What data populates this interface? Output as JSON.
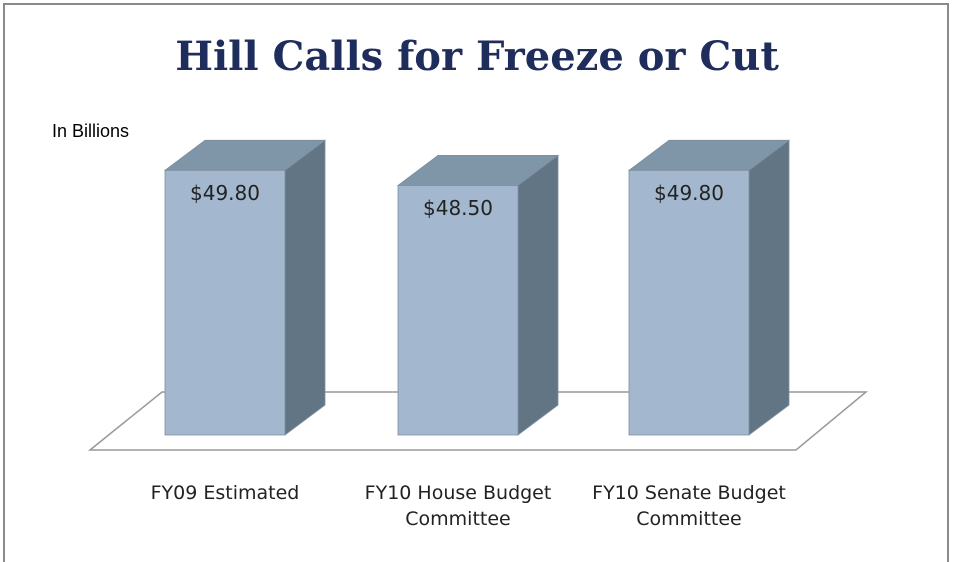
{
  "chart_data": {
    "type": "bar3d",
    "title": "Hill Calls for Freeze or Cut",
    "subtitle": "In Billions",
    "categories": [
      "FY09 Estimated",
      "FY10 House Budget Committee",
      "FY10 Senate Budget Committee"
    ],
    "values": [
      49.8,
      48.5,
      49.8
    ],
    "value_labels": [
      "$49.80",
      "$48.50",
      "$49.80"
    ],
    "color": "#a3b8cf",
    "ylim": [
      27,
      50
    ]
  }
}
